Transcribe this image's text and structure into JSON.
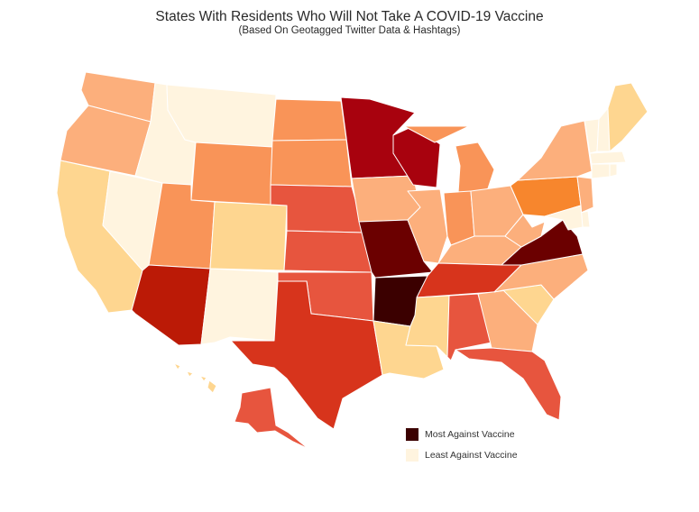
{
  "title": "States With Residents Who Will Not Take A COVID-19 Vaccine",
  "subtitle": "(Based On Geotagged Twitter Data & Hashtags)",
  "legend": {
    "high_label": "Most Against Vaccine",
    "low_label": "Least Against Vaccine",
    "high_color": "#3b0000",
    "low_color": "#fff4df"
  },
  "scale": [
    "#fff4df",
    "#fed690",
    "#fcaf7c",
    "#f99458",
    "#f7862d",
    "#e7553e",
    "#d7341c",
    "#bb1a06",
    "#a8020e",
    "#6b0000",
    "#3b0000"
  ],
  "states": {
    "WA": 2,
    "OR": 2,
    "CA": 1,
    "NV": 0,
    "ID": 0,
    "MT": 0,
    "WY": 3,
    "UT": 3,
    "AZ": 7,
    "CO": 1,
    "NM": 0,
    "ND": 3,
    "SD": 3,
    "NE": 5,
    "KS": 5,
    "OK": 5,
    "TX": 6,
    "MN": 8,
    "IA": 2,
    "MO": 9,
    "AR": 10,
    "LA": 1,
    "WI": 8,
    "IL": 2,
    "MI": 3,
    "IN": 3,
    "OH": 2,
    "KY": 2,
    "TN": 6,
    "MS": 1,
    "AL": 5,
    "GA": 2,
    "FL": 5,
    "SC": 1,
    "NC": 2,
    "VA": 9,
    "WV": 2,
    "PA": 4,
    "NY": 2,
    "ME": 1,
    "NH": 0,
    "VT": 0,
    "MA": 0,
    "CT": 0,
    "RI": 0,
    "NJ": 2,
    "DE": 0,
    "MD": 0,
    "AK": 5,
    "HI": 1
  }
}
